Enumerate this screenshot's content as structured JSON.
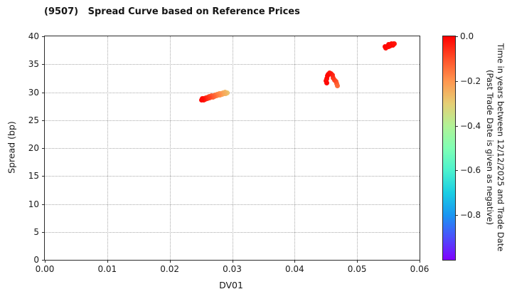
{
  "chart_data": {
    "type": "scatter",
    "title": "(9507)   Spread Curve based on Reference Prices",
    "xlabel": "DV01",
    "ylabel": "Spread (bp)",
    "xlim": [
      0.0,
      0.06
    ],
    "ylim": [
      0,
      40
    ],
    "grid": true,
    "xticks": [
      {
        "label": "0.00",
        "value": 0.0
      },
      {
        "label": "0.01",
        "value": 0.01
      },
      {
        "label": "0.02",
        "value": 0.02
      },
      {
        "label": "0.03",
        "value": 0.03
      },
      {
        "label": "0.04",
        "value": 0.04
      },
      {
        "label": "0.05",
        "value": 0.05
      },
      {
        "label": "0.06",
        "value": 0.06
      }
    ],
    "yticks": [
      {
        "label": "0",
        "value": 0
      },
      {
        "label": "5",
        "value": 5
      },
      {
        "label": "10",
        "value": 10
      },
      {
        "label": "15",
        "value": 15
      },
      {
        "label": "20",
        "value": 20
      },
      {
        "label": "25",
        "value": 25
      },
      {
        "label": "30",
        "value": 30
      },
      {
        "label": "35",
        "value": 35
      },
      {
        "label": "40",
        "value": 40
      }
    ],
    "colorbar": {
      "label_line1": "Time in years between 12/12/2025 and Trade Date",
      "label_line2": "(Past Trade Date is given as negative)",
      "range": [
        0,
        -1.0
      ],
      "ticks": [
        {
          "label": "0.0",
          "value": 0.0
        },
        {
          "label": "−0.2",
          "value": -0.2
        },
        {
          "label": "−0.4",
          "value": -0.4
        },
        {
          "label": "−0.6",
          "value": -0.6
        },
        {
          "label": "−0.8",
          "value": -0.8
        }
      ],
      "stops": [
        {
          "v": -1.0,
          "color": "#8000ff"
        },
        {
          "v": -0.9,
          "color": "#4c4ffc"
        },
        {
          "v": -0.8,
          "color": "#1a96f2"
        },
        {
          "v": -0.7,
          "color": "#1acee3"
        },
        {
          "v": -0.6,
          "color": "#4cf2ce"
        },
        {
          "v": -0.5,
          "color": "#80ffb4"
        },
        {
          "v": -0.4,
          "color": "#b2f296"
        },
        {
          "v": -0.3,
          "color": "#e6ce74"
        },
        {
          "v": -0.2,
          "color": "#ff964f"
        },
        {
          "v": -0.1,
          "color": "#ff4f28"
        },
        {
          "v": -0.05,
          "color": "#ff2814"
        },
        {
          "v": 0.0,
          "color": "#ff0000"
        }
      ]
    },
    "points": [
      {
        "x": 0.0292,
        "y": 29.9,
        "t": -0.28
      },
      {
        "x": 0.029,
        "y": 29.75,
        "t": -0.27
      },
      {
        "x": 0.0289,
        "y": 29.95,
        "t": -0.26
      },
      {
        "x": 0.0287,
        "y": 29.8,
        "t": -0.25
      },
      {
        "x": 0.0285,
        "y": 29.9,
        "t": -0.24
      },
      {
        "x": 0.0284,
        "y": 29.65,
        "t": -0.23
      },
      {
        "x": 0.0282,
        "y": 29.8,
        "t": -0.22
      },
      {
        "x": 0.0281,
        "y": 29.55,
        "t": -0.21
      },
      {
        "x": 0.0279,
        "y": 29.7,
        "t": -0.2
      },
      {
        "x": 0.0278,
        "y": 29.45,
        "t": -0.19
      },
      {
        "x": 0.0276,
        "y": 29.6,
        "t": -0.18
      },
      {
        "x": 0.0275,
        "y": 29.35,
        "t": -0.17
      },
      {
        "x": 0.0273,
        "y": 29.5,
        "t": -0.16
      },
      {
        "x": 0.0272,
        "y": 29.25,
        "t": -0.15
      },
      {
        "x": 0.027,
        "y": 29.4,
        "t": -0.14
      },
      {
        "x": 0.0269,
        "y": 29.15,
        "t": -0.13
      },
      {
        "x": 0.0267,
        "y": 29.3,
        "t": -0.12
      },
      {
        "x": 0.0266,
        "y": 29.05,
        "t": -0.11
      },
      {
        "x": 0.0264,
        "y": 29.2,
        "t": -0.1
      },
      {
        "x": 0.0263,
        "y": 28.95,
        "t": -0.09
      },
      {
        "x": 0.0261,
        "y": 29.1,
        "t": -0.08
      },
      {
        "x": 0.026,
        "y": 28.85,
        "t": -0.07
      },
      {
        "x": 0.0258,
        "y": 29.0,
        "t": -0.06
      },
      {
        "x": 0.0257,
        "y": 28.75,
        "t": -0.05
      },
      {
        "x": 0.0255,
        "y": 28.9,
        "t": -0.04
      },
      {
        "x": 0.0254,
        "y": 28.65,
        "t": -0.03
      },
      {
        "x": 0.0252,
        "y": 28.8,
        "t": -0.02
      },
      {
        "x": 0.0251,
        "y": 28.55,
        "t": -0.01
      },
      {
        "x": 0.0468,
        "y": 31.2,
        "t": -0.14
      },
      {
        "x": 0.0467,
        "y": 31.5,
        "t": -0.13
      },
      {
        "x": 0.0466,
        "y": 31.9,
        "t": -0.11
      },
      {
        "x": 0.0464,
        "y": 32.2,
        "t": -0.09
      },
      {
        "x": 0.0462,
        "y": 32.6,
        "t": -0.07
      },
      {
        "x": 0.0461,
        "y": 33.0,
        "t": -0.05
      },
      {
        "x": 0.0458,
        "y": 33.3,
        "t": -0.04
      },
      {
        "x": 0.0456,
        "y": 33.4,
        "t": -0.03
      },
      {
        "x": 0.0454,
        "y": 33.2,
        "t": -0.02
      },
      {
        "x": 0.0452,
        "y": 32.9,
        "t": -0.01
      },
      {
        "x": 0.0451,
        "y": 32.4,
        "t": -0.01
      },
      {
        "x": 0.045,
        "y": 32.0,
        "t": -0.02
      },
      {
        "x": 0.0451,
        "y": 31.7,
        "t": -0.01
      },
      {
        "x": 0.056,
        "y": 38.6,
        "t": -0.04
      },
      {
        "x": 0.0558,
        "y": 38.7,
        "t": -0.03
      },
      {
        "x": 0.0557,
        "y": 38.4,
        "t": -0.02
      },
      {
        "x": 0.0555,
        "y": 38.6,
        "t": -0.02
      },
      {
        "x": 0.0553,
        "y": 38.3,
        "t": -0.01
      },
      {
        "x": 0.0551,
        "y": 38.5,
        "t": -0.01
      },
      {
        "x": 0.055,
        "y": 38.2,
        "t": -0.02
      },
      {
        "x": 0.0548,
        "y": 38.1,
        "t": -0.01
      },
      {
        "x": 0.0546,
        "y": 37.95,
        "t": -0.02
      },
      {
        "x": 0.0545,
        "y": 38.15,
        "t": -0.01
      }
    ]
  }
}
